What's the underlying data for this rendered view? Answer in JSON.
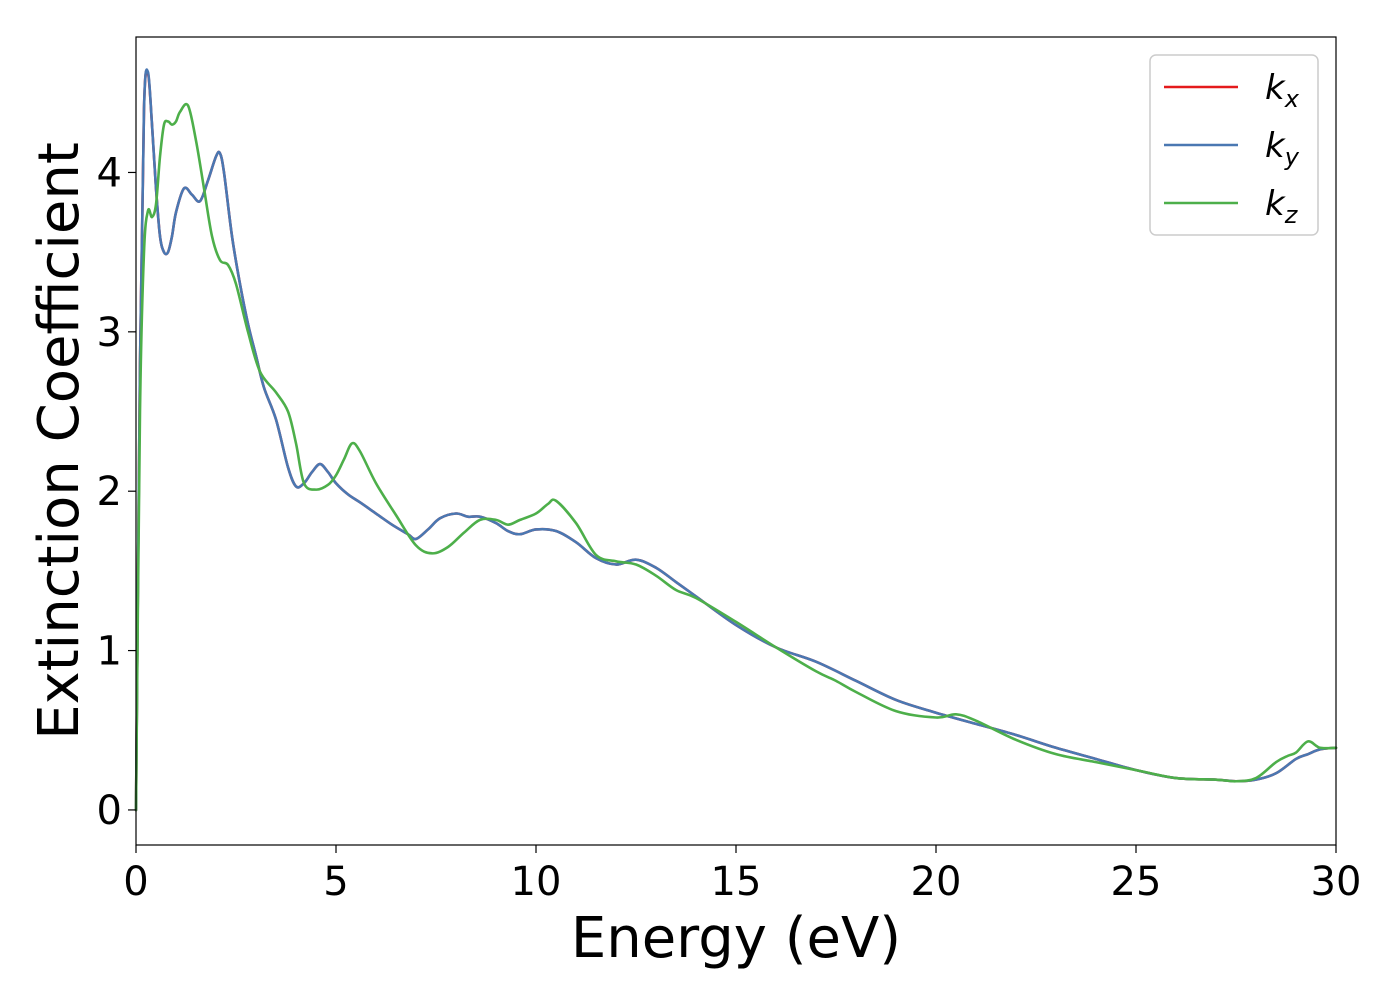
{
  "chart_data": {
    "type": "line",
    "title": "",
    "xlabel": "Energy (eV)",
    "ylabel": "Extinction Coefficient",
    "xlim": [
      0,
      30
    ],
    "ylim": [
      -0.22,
      4.85
    ],
    "xticks": [
      0,
      5,
      10,
      15,
      20,
      25,
      30
    ],
    "yticks": [
      0,
      1,
      2,
      3,
      4
    ],
    "grid": false,
    "legend_position": "top-right",
    "series": [
      {
        "name": "k_x",
        "legend_base": "k",
        "legend_sub": "x",
        "color": "#e41a1c",
        "x": [
          0,
          0.1,
          0.2,
          0.3,
          0.4,
          0.5,
          0.6,
          0.7,
          0.8,
          0.9,
          1.0,
          1.2,
          1.4,
          1.6,
          1.8,
          2.0,
          2.1,
          2.2,
          2.4,
          2.6,
          2.8,
          3.0,
          3.2,
          3.5,
          3.8,
          4.0,
          4.2,
          4.4,
          4.6,
          4.8,
          5.0,
          5.3,
          5.6,
          6.0,
          6.4,
          6.8,
          7.0,
          7.3,
          7.6,
          8.0,
          8.3,
          8.6,
          9.0,
          9.3,
          9.6,
          10.0,
          10.5,
          11.0,
          11.5,
          12.0,
          12.5,
          13.0,
          13.5,
          14.0,
          15.0,
          16.0,
          17.0,
          18.0,
          19.0,
          20.0,
          21.0,
          22.0,
          23.0,
          24.0,
          25.0,
          26.0,
          27.0,
          27.5,
          28.0,
          28.5,
          29.0,
          29.3,
          29.6,
          30.0
        ],
        "values": [
          0,
          2.8,
          4.4,
          4.62,
          4.3,
          3.9,
          3.6,
          3.5,
          3.5,
          3.6,
          3.75,
          3.9,
          3.86,
          3.82,
          3.95,
          4.1,
          4.12,
          4.0,
          3.6,
          3.3,
          3.05,
          2.85,
          2.65,
          2.45,
          2.15,
          2.03,
          2.05,
          2.12,
          2.17,
          2.12,
          2.05,
          1.98,
          1.93,
          1.86,
          1.79,
          1.73,
          1.7,
          1.76,
          1.83,
          1.86,
          1.84,
          1.84,
          1.8,
          1.75,
          1.73,
          1.76,
          1.75,
          1.68,
          1.58,
          1.54,
          1.57,
          1.52,
          1.43,
          1.34,
          1.16,
          1.02,
          0.93,
          0.81,
          0.69,
          0.61,
          0.54,
          0.47,
          0.39,
          0.32,
          0.25,
          0.2,
          0.19,
          0.18,
          0.19,
          0.23,
          0.32,
          0.35,
          0.38,
          0.39
        ]
      },
      {
        "name": "k_y",
        "legend_base": "k",
        "legend_sub": "y",
        "color": "#4a78b2",
        "x": [
          0,
          0.1,
          0.2,
          0.3,
          0.4,
          0.5,
          0.6,
          0.7,
          0.8,
          0.9,
          1.0,
          1.2,
          1.4,
          1.6,
          1.8,
          2.0,
          2.1,
          2.2,
          2.4,
          2.6,
          2.8,
          3.0,
          3.2,
          3.5,
          3.8,
          4.0,
          4.2,
          4.4,
          4.6,
          4.8,
          5.0,
          5.3,
          5.6,
          6.0,
          6.4,
          6.8,
          7.0,
          7.3,
          7.6,
          8.0,
          8.3,
          8.6,
          9.0,
          9.3,
          9.6,
          10.0,
          10.5,
          11.0,
          11.5,
          12.0,
          12.5,
          13.0,
          13.5,
          14.0,
          15.0,
          16.0,
          17.0,
          18.0,
          19.0,
          20.0,
          21.0,
          22.0,
          23.0,
          24.0,
          25.0,
          26.0,
          27.0,
          27.5,
          28.0,
          28.5,
          29.0,
          29.3,
          29.6,
          30.0
        ],
        "values": [
          0,
          2.8,
          4.4,
          4.63,
          4.3,
          3.9,
          3.6,
          3.5,
          3.5,
          3.6,
          3.75,
          3.9,
          3.86,
          3.82,
          3.95,
          4.1,
          4.12,
          4.0,
          3.6,
          3.3,
          3.05,
          2.85,
          2.65,
          2.45,
          2.15,
          2.03,
          2.05,
          2.12,
          2.17,
          2.12,
          2.05,
          1.98,
          1.93,
          1.86,
          1.79,
          1.73,
          1.7,
          1.76,
          1.83,
          1.86,
          1.84,
          1.84,
          1.8,
          1.75,
          1.73,
          1.76,
          1.75,
          1.68,
          1.58,
          1.54,
          1.57,
          1.52,
          1.43,
          1.34,
          1.16,
          1.02,
          0.93,
          0.81,
          0.69,
          0.61,
          0.54,
          0.47,
          0.39,
          0.32,
          0.25,
          0.2,
          0.19,
          0.18,
          0.19,
          0.23,
          0.32,
          0.35,
          0.38,
          0.39
        ]
      },
      {
        "name": "k_z",
        "legend_base": "k",
        "legend_sub": "z",
        "color": "#4daf4a",
        "x": [
          0,
          0.1,
          0.2,
          0.3,
          0.4,
          0.5,
          0.6,
          0.7,
          0.8,
          0.9,
          1.0,
          1.1,
          1.3,
          1.5,
          1.7,
          1.9,
          2.1,
          2.3,
          2.5,
          2.8,
          3.1,
          3.5,
          3.8,
          4.0,
          4.2,
          4.5,
          4.8,
          5.0,
          5.2,
          5.4,
          5.6,
          6.0,
          6.5,
          7.0,
          7.4,
          7.8,
          8.2,
          8.6,
          9.0,
          9.3,
          9.6,
          10.0,
          10.3,
          10.5,
          11.0,
          11.5,
          12.0,
          12.5,
          13.0,
          13.5,
          14.0,
          15.0,
          16.0,
          17.0,
          17.5,
          18.0,
          19.0,
          20.0,
          20.5,
          21.0,
          22.0,
          23.0,
          24.0,
          25.0,
          26.0,
          27.0,
          27.5,
          28.0,
          28.5,
          28.8,
          29.0,
          29.3,
          29.6,
          30.0
        ],
        "values": [
          0,
          2.5,
          3.5,
          3.76,
          3.72,
          3.8,
          4.1,
          4.3,
          4.32,
          4.3,
          4.32,
          4.38,
          4.42,
          4.2,
          3.9,
          3.6,
          3.45,
          3.42,
          3.3,
          3.0,
          2.75,
          2.62,
          2.5,
          2.3,
          2.05,
          2.01,
          2.04,
          2.1,
          2.2,
          2.3,
          2.25,
          2.05,
          1.85,
          1.66,
          1.61,
          1.65,
          1.74,
          1.82,
          1.82,
          1.79,
          1.82,
          1.86,
          1.92,
          1.94,
          1.8,
          1.6,
          1.56,
          1.54,
          1.47,
          1.38,
          1.33,
          1.18,
          1.02,
          0.87,
          0.81,
          0.74,
          0.62,
          0.58,
          0.6,
          0.56,
          0.44,
          0.35,
          0.3,
          0.25,
          0.2,
          0.19,
          0.18,
          0.2,
          0.3,
          0.34,
          0.36,
          0.43,
          0.39,
          0.39
        ]
      }
    ]
  }
}
